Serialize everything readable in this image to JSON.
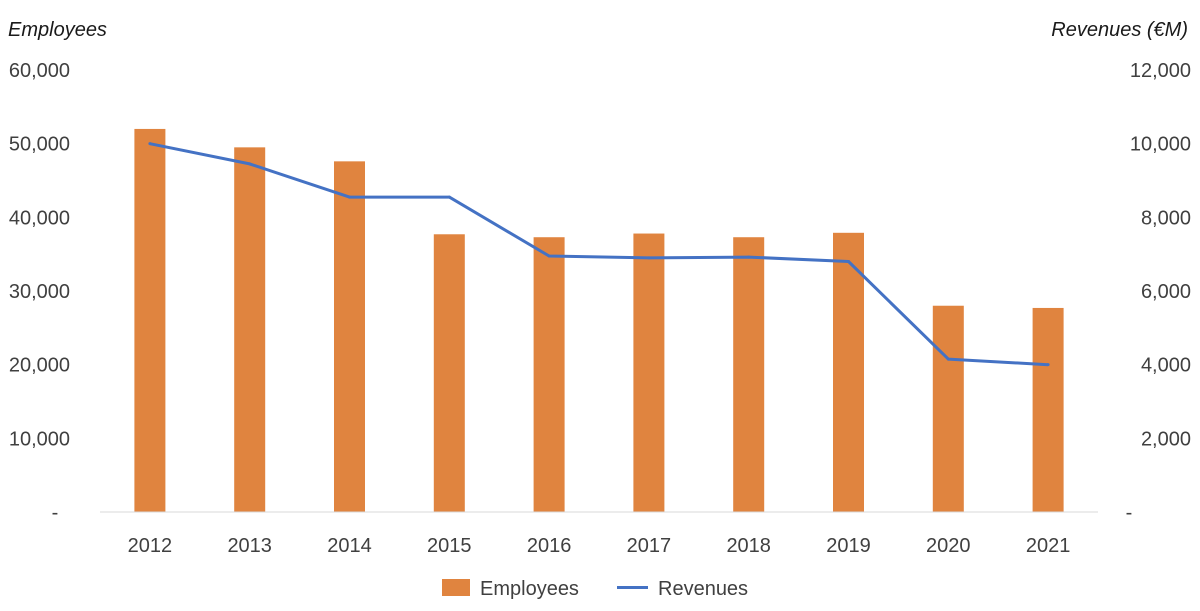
{
  "chart_data": {
    "type": "bar",
    "categories": [
      "2012",
      "2013",
      "2014",
      "2015",
      "2016",
      "2017",
      "2018",
      "2019",
      "2020",
      "2021"
    ],
    "series": [
      {
        "name": "Employees",
        "type": "bar",
        "axis": "left",
        "color": "#E0843F",
        "values": [
          52000,
          49500,
          47600,
          37700,
          37300,
          37800,
          37300,
          37900,
          28000,
          27700
        ]
      },
      {
        "name": "Revenues",
        "type": "line",
        "axis": "right",
        "color": "#4472C4",
        "values": [
          10000,
          9450,
          8550,
          8550,
          6950,
          6900,
          6920,
          6800,
          4150,
          4000
        ]
      }
    ],
    "title": "",
    "ylabel_left": "Employees",
    "ylabel_right": "Revenues (€M)",
    "ylim_left": [
      0,
      60000
    ],
    "ylim_right": [
      0,
      12000
    ],
    "yticks_left": [
      "-",
      "10,000",
      "20,000",
      "30,000",
      "40,000",
      "50,000",
      "60,000"
    ],
    "yticks_right": [
      "-",
      "2,000",
      "4,000",
      "6,000",
      "8,000",
      "10,000",
      "12,000"
    ],
    "grid": false,
    "legend_position": "bottom"
  }
}
